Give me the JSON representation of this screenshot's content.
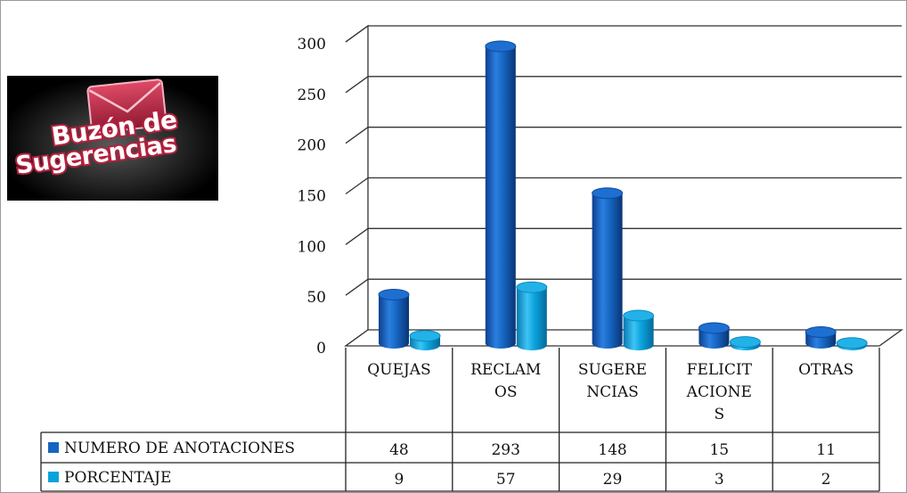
{
  "logo": {
    "line1": "Buzón de",
    "line2": "Sugerencias"
  },
  "colors": {
    "series1": "#1565c0",
    "series2": "#0aa2dc",
    "grid": "#333333",
    "logo_bg": "#000000",
    "logo_accent": "#b3203d"
  },
  "chart_data": {
    "type": "bar",
    "categories": [
      "QUEJAS",
      "RECLAMOS",
      "SUGERENCIAS",
      "FELICITACIONES",
      "OTRAS"
    ],
    "category_label_lines": [
      [
        "QUEJAS"
      ],
      [
        "RECLAM",
        "OS"
      ],
      [
        "SUGERE",
        "NCIAS"
      ],
      [
        "FELICIT",
        "ACIONE",
        "S"
      ],
      [
        "OTRAS"
      ]
    ],
    "series": [
      {
        "name": "NUMERO DE ANOTACIONES",
        "values": [
          48,
          293,
          148,
          15,
          11
        ],
        "color": "#1565c0"
      },
      {
        "name": "PORCENTAJE",
        "values": [
          9,
          57,
          29,
          3,
          2
        ],
        "color": "#0aa2dc"
      }
    ],
    "y_ticks": [
      "0",
      "50",
      "100",
      "150",
      "200",
      "250",
      "300"
    ],
    "ylim": [
      0,
      300
    ],
    "grid": true,
    "style": "3d-cylinder",
    "legend": "data-table-left"
  }
}
